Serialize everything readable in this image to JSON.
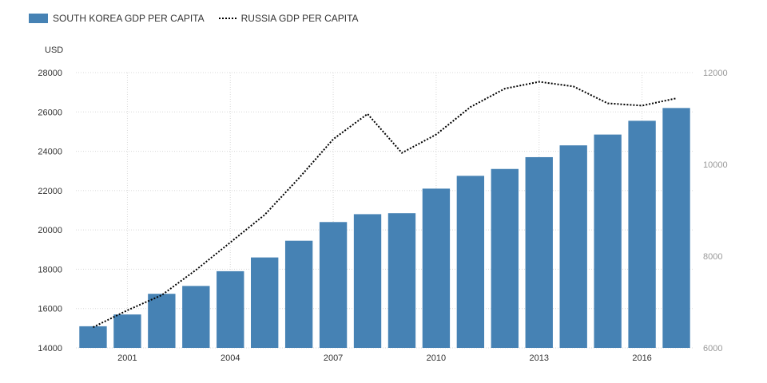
{
  "legend": {
    "korea_label": "SOUTH KOREA GDP PER CAPITA",
    "russia_label": "RUSSIA GDP PER CAPITA"
  },
  "chart_data": {
    "type": "bar",
    "ylabel": "USD",
    "grid": true,
    "legend_position": "top-left",
    "x": [
      2000,
      2001,
      2002,
      2003,
      2004,
      2005,
      2006,
      2007,
      2008,
      2009,
      2010,
      2011,
      2012,
      2013,
      2014,
      2015,
      2016,
      2017
    ],
    "x_tick_labels": [
      "2001",
      "2004",
      "2007",
      "2010",
      "2013",
      "2016"
    ],
    "x_tick_values": [
      2001,
      2004,
      2007,
      2010,
      2013,
      2016
    ],
    "y_left": {
      "range": [
        14000,
        28000
      ],
      "ticks": [
        14000,
        16000,
        18000,
        20000,
        22000,
        24000,
        26000,
        28000
      ]
    },
    "y_right": {
      "range": [
        6000,
        12000
      ],
      "ticks": [
        6000,
        8000,
        10000,
        12000
      ]
    },
    "series": [
      {
        "name": "SOUTH KOREA GDP PER CAPITA",
        "type": "bar",
        "axis": "left",
        "color": "#4682b4",
        "values": [
          15100,
          15700,
          16750,
          17150,
          17900,
          18600,
          19450,
          20400,
          20800,
          20850,
          22100,
          22750,
          23100,
          23700,
          24300,
          24850,
          25550,
          26200
        ]
      },
      {
        "name": "RUSSIA GDP PER CAPITA",
        "type": "line",
        "style": "dotted",
        "axis": "right",
        "color": "#000000",
        "values": [
          6450,
          6820,
          7150,
          7700,
          8300,
          8900,
          9700,
          10550,
          11100,
          10250,
          10650,
          11250,
          11650,
          11800,
          11700,
          11330,
          11280,
          11440
        ]
      }
    ]
  }
}
